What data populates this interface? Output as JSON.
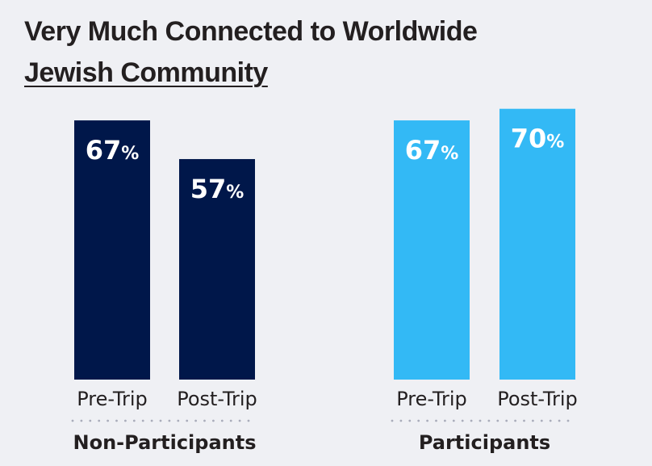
{
  "chart_data": {
    "type": "bar",
    "title_line1": "Very Much Connected to Worldwide",
    "title_link": "Jewish Community",
    "xlabel": "",
    "ylabel": "",
    "ylim": [
      0,
      100
    ],
    "grid": false,
    "categories": [
      "Pre-Trip",
      "Post-Trip"
    ],
    "groups": [
      {
        "name": "Non-Participants",
        "color": "#00174a",
        "categories": [
          "Pre-Trip",
          "Post-Trip"
        ],
        "values": [
          67,
          57
        ]
      },
      {
        "name": "Participants",
        "color": "#33b9f5",
        "categories": [
          "Pre-Trip",
          "Post-Trip"
        ],
        "values": [
          67,
          70
        ]
      }
    ],
    "value_suffix": "%"
  }
}
